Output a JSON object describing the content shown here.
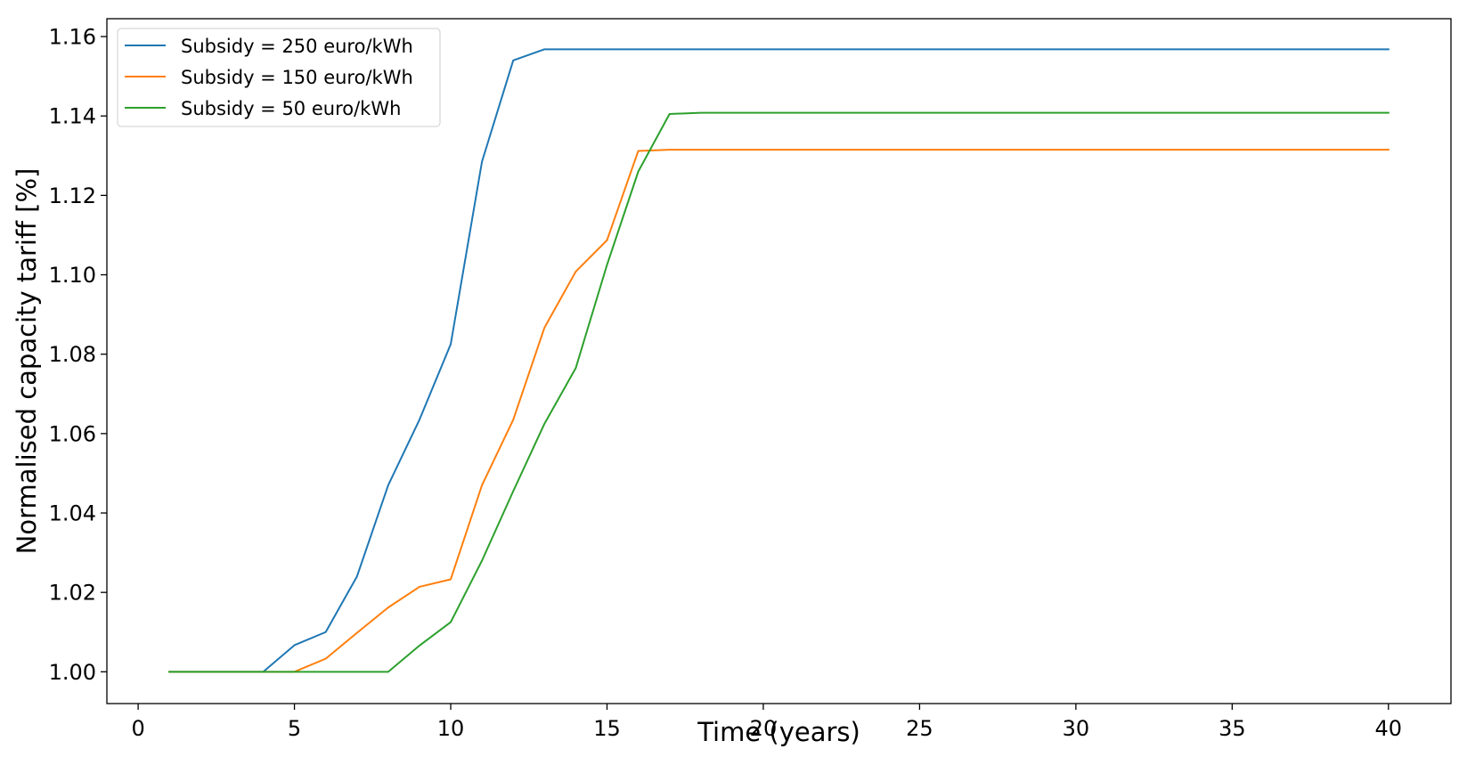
{
  "chart_data": {
    "type": "line",
    "title": "",
    "xlabel": "Time (years)",
    "ylabel": "Normalised capacity tariff [%]",
    "xlim": [
      -1,
      42
    ],
    "ylim": [
      0.992,
      1.1645
    ],
    "xticks": [
      0,
      5,
      10,
      15,
      20,
      25,
      30,
      35,
      40
    ],
    "xtick_labels": [
      "0",
      "5",
      "10",
      "15",
      "20",
      "25",
      "30",
      "35",
      "40"
    ],
    "yticks": [
      1.0,
      1.02,
      1.04,
      1.06,
      1.08,
      1.1,
      1.12,
      1.14,
      1.16
    ],
    "ytick_labels": [
      "1.00",
      "1.02",
      "1.04",
      "1.06",
      "1.08",
      "1.10",
      "1.12",
      "1.14",
      "1.16"
    ],
    "grid": false,
    "legend_position": "top-left",
    "x": [
      1,
      2,
      3,
      4,
      5,
      6,
      7,
      8,
      9,
      10,
      11,
      12,
      13,
      14,
      15,
      16,
      17,
      18,
      19,
      20,
      21,
      22,
      23,
      24,
      25,
      26,
      27,
      28,
      29,
      30,
      31,
      32,
      33,
      34,
      35,
      36,
      37,
      38,
      39,
      40
    ],
    "series": [
      {
        "name": "Subsidy = 250 euro/kWh",
        "color": "#1f77b4",
        "values": [
          1.0,
          1.0,
          1.0,
          1.0,
          1.0067,
          1.01,
          1.024,
          1.047,
          1.0635,
          1.0825,
          1.1285,
          1.154,
          1.1568,
          1.1568,
          1.1568,
          1.1568,
          1.1568,
          1.1568,
          1.1568,
          1.1568,
          1.1568,
          1.1568,
          1.1568,
          1.1568,
          1.1568,
          1.1568,
          1.1568,
          1.1568,
          1.1568,
          1.1568,
          1.1568,
          1.1568,
          1.1568,
          1.1568,
          1.1568,
          1.1568,
          1.1568,
          1.1568,
          1.1568,
          1.1568
        ]
      },
      {
        "name": "Subsidy = 150 euro/kWh",
        "color": "#ff7f0e",
        "values": [
          1.0,
          1.0,
          1.0,
          1.0,
          1.0,
          1.0033,
          1.0098,
          1.0162,
          1.0214,
          1.0233,
          1.047,
          1.0635,
          1.0867,
          1.1008,
          1.1087,
          1.1312,
          1.1315,
          1.1315,
          1.1315,
          1.1315,
          1.1315,
          1.1315,
          1.1315,
          1.1315,
          1.1315,
          1.1315,
          1.1315,
          1.1315,
          1.1315,
          1.1315,
          1.1315,
          1.1315,
          1.1315,
          1.1315,
          1.1315,
          1.1315,
          1.1315,
          1.1315,
          1.1315,
          1.1315
        ]
      },
      {
        "name": "Subsidy = 50 euro/kWh",
        "color": "#2ca02c",
        "values": [
          1.0,
          1.0,
          1.0,
          1.0,
          1.0,
          1.0,
          1.0,
          1.0,
          1.0066,
          1.0125,
          1.028,
          1.0455,
          1.0625,
          1.0765,
          1.1025,
          1.126,
          1.1405,
          1.1408,
          1.1408,
          1.1408,
          1.1408,
          1.1408,
          1.1408,
          1.1408,
          1.1408,
          1.1408,
          1.1408,
          1.1408,
          1.1408,
          1.1408,
          1.1408,
          1.1408,
          1.1408,
          1.1408,
          1.1408,
          1.1408,
          1.1408,
          1.1408,
          1.1408,
          1.1408
        ]
      }
    ]
  }
}
